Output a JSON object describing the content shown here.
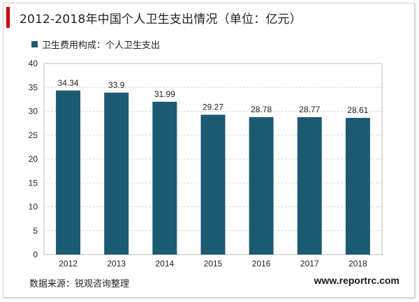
{
  "title": "2012-2018年中国个人卫生支出情况（单位：亿元）",
  "source": "数据来源：锐观咨询整理",
  "website": "www.reportrc.com",
  "colors": {
    "bar": "#1c5a72",
    "accent": "#d40000",
    "grid": "#d9d9d9",
    "axis": "#bfbfbf"
  },
  "chart_data": {
    "type": "bar",
    "categories": [
      "2012",
      "2013",
      "2014",
      "2015",
      "2016",
      "2017",
      "2018"
    ],
    "series": [
      {
        "name": "卫生费用构成：个人卫生支出",
        "values": [
          34.34,
          33.9,
          31.99,
          29.27,
          28.78,
          28.77,
          28.61
        ]
      }
    ],
    "data_labels": [
      "34.34",
      "33.9",
      "31.99",
      "29.27",
      "28.78",
      "28.77",
      "28.61"
    ],
    "ylim": [
      0,
      40
    ],
    "yticks": [
      "0",
      "5",
      "10",
      "15",
      "20",
      "25",
      "30",
      "35",
      "40"
    ],
    "xlabel": "",
    "ylabel": "",
    "grid": true,
    "legend_position": "top-left"
  }
}
